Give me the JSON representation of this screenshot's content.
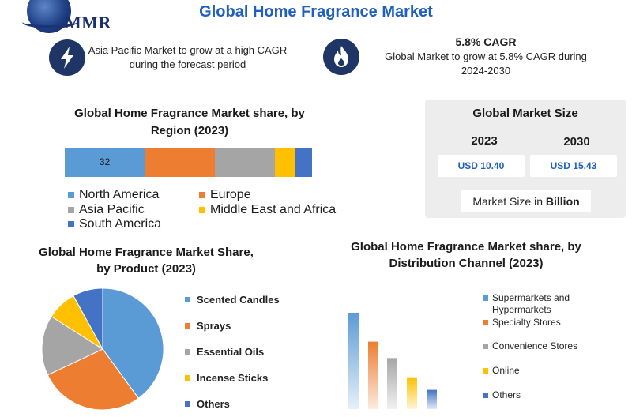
{
  "logo": {
    "text": "MMR"
  },
  "title": "Global Home Fragrance Market",
  "highlights": [
    {
      "icon": "lightning-icon",
      "text": "Asia Pacific Market to grow at a high CAGR during the forecast period"
    },
    {
      "icon": "flame-icon",
      "heading": "5.8% CAGR",
      "text": "Global Market to grow at 5.8% CAGR during 2024-2030"
    }
  ],
  "market_size": {
    "title": "Global Market Size",
    "years": [
      {
        "year": "2023",
        "value": "USD 10.40"
      },
      {
        "year": "2030",
        "value": "USD 15.43"
      }
    ],
    "unit_prefix": "Market Size in ",
    "unit_bold": "Billion"
  },
  "colors": {
    "blue": "#5b9bd5",
    "orange": "#ed7d31",
    "gray": "#a5a5a5",
    "yellow": "#ffc000",
    "dark_blue": "#4472c4",
    "icon_bg": "#1e3566",
    "title_blue": "#1f5fbf"
  },
  "chart_data": [
    {
      "type": "bar",
      "stacked": true,
      "title": "Global Home Fragrance Market share, by Region (2023)",
      "series": [
        {
          "name": "North America",
          "value": 32,
          "color": "#5b9bd5",
          "label": "32"
        },
        {
          "name": "Europe",
          "value": 28,
          "color": "#ed7d31"
        },
        {
          "name": "Asia Pacific",
          "value": 24,
          "color": "#a5a5a5"
        },
        {
          "name": "Middle East and Africa",
          "value": 8,
          "color": "#ffc000"
        },
        {
          "name": "South America",
          "value": 7,
          "color": "#4472c4"
        }
      ]
    },
    {
      "type": "pie",
      "title": "Global Home Fragrance Market Share, by Product (2023)",
      "slices": [
        {
          "name": "Scented Candles",
          "value": 40,
          "color": "#5b9bd5"
        },
        {
          "name": "Sprays",
          "value": 28,
          "color": "#ed7d31"
        },
        {
          "name": "Essential Oils",
          "value": 16,
          "color": "#a5a5a5"
        },
        {
          "name": "Incense Sticks",
          "value": 8,
          "color": "#ffc000"
        },
        {
          "name": "Others",
          "value": 8,
          "color": "#4472c4"
        }
      ]
    },
    {
      "type": "bar",
      "title": "Global Home Fragrance Market share, by Distribution Channel (2023)",
      "categories": [
        "Supermarkets and Hypermarkets",
        "Specialty Stores",
        "Convenience Stores",
        "Online",
        "Others"
      ],
      "values": [
        100,
        70,
        53,
        33,
        20
      ],
      "colors": [
        "#5b9bd5",
        "#ed7d31",
        "#a5a5a5",
        "#ffc000",
        "#4472c4"
      ]
    }
  ]
}
